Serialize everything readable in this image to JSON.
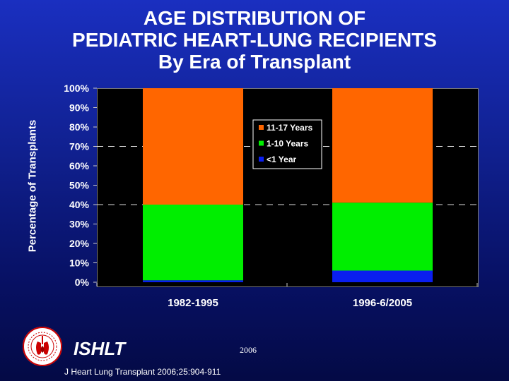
{
  "title": {
    "line1": "AGE DISTRIBUTION OF",
    "line2": "PEDIATRIC HEART-LUNG RECIPIENTS",
    "line3": "By Era of Transplant"
  },
  "chart_data": {
    "type": "bar",
    "stacked": true,
    "title": "AGE DISTRIBUTION OF PEDIATRIC HEART-LUNG RECIPIENTS By Era of Transplant",
    "ylabel": "Percentage of Transplants",
    "xlabel": "",
    "ylim": [
      0,
      100
    ],
    "yticks": [
      "0%",
      "10%",
      "20%",
      "30%",
      "40%",
      "50%",
      "60%",
      "70%",
      "80%",
      "90%",
      "100%"
    ],
    "categories": [
      "1982-1995",
      "1996-6/2005"
    ],
    "series": [
      {
        "name": "<1 Year",
        "color": "#0a1ef0",
        "values": [
          1,
          6
        ]
      },
      {
        "name": "1-10 Years",
        "color": "#00ee00",
        "values": [
          39,
          35
        ]
      },
      {
        "name": "11-17 Years",
        "color": "#ff6600",
        "values": [
          60,
          59
        ]
      }
    ],
    "reference_lines": [
      70,
      40
    ],
    "legend": {
      "position": "center",
      "order": [
        "11-17 Years",
        "1-10 Years",
        "<1 Year"
      ]
    }
  },
  "footer": {
    "organization": "ISHLT",
    "year": "2006",
    "citation": "J Heart Lung Transplant 2006;25:904-911"
  },
  "colors": {
    "background": "#10208f",
    "plot_background": "#000000"
  }
}
